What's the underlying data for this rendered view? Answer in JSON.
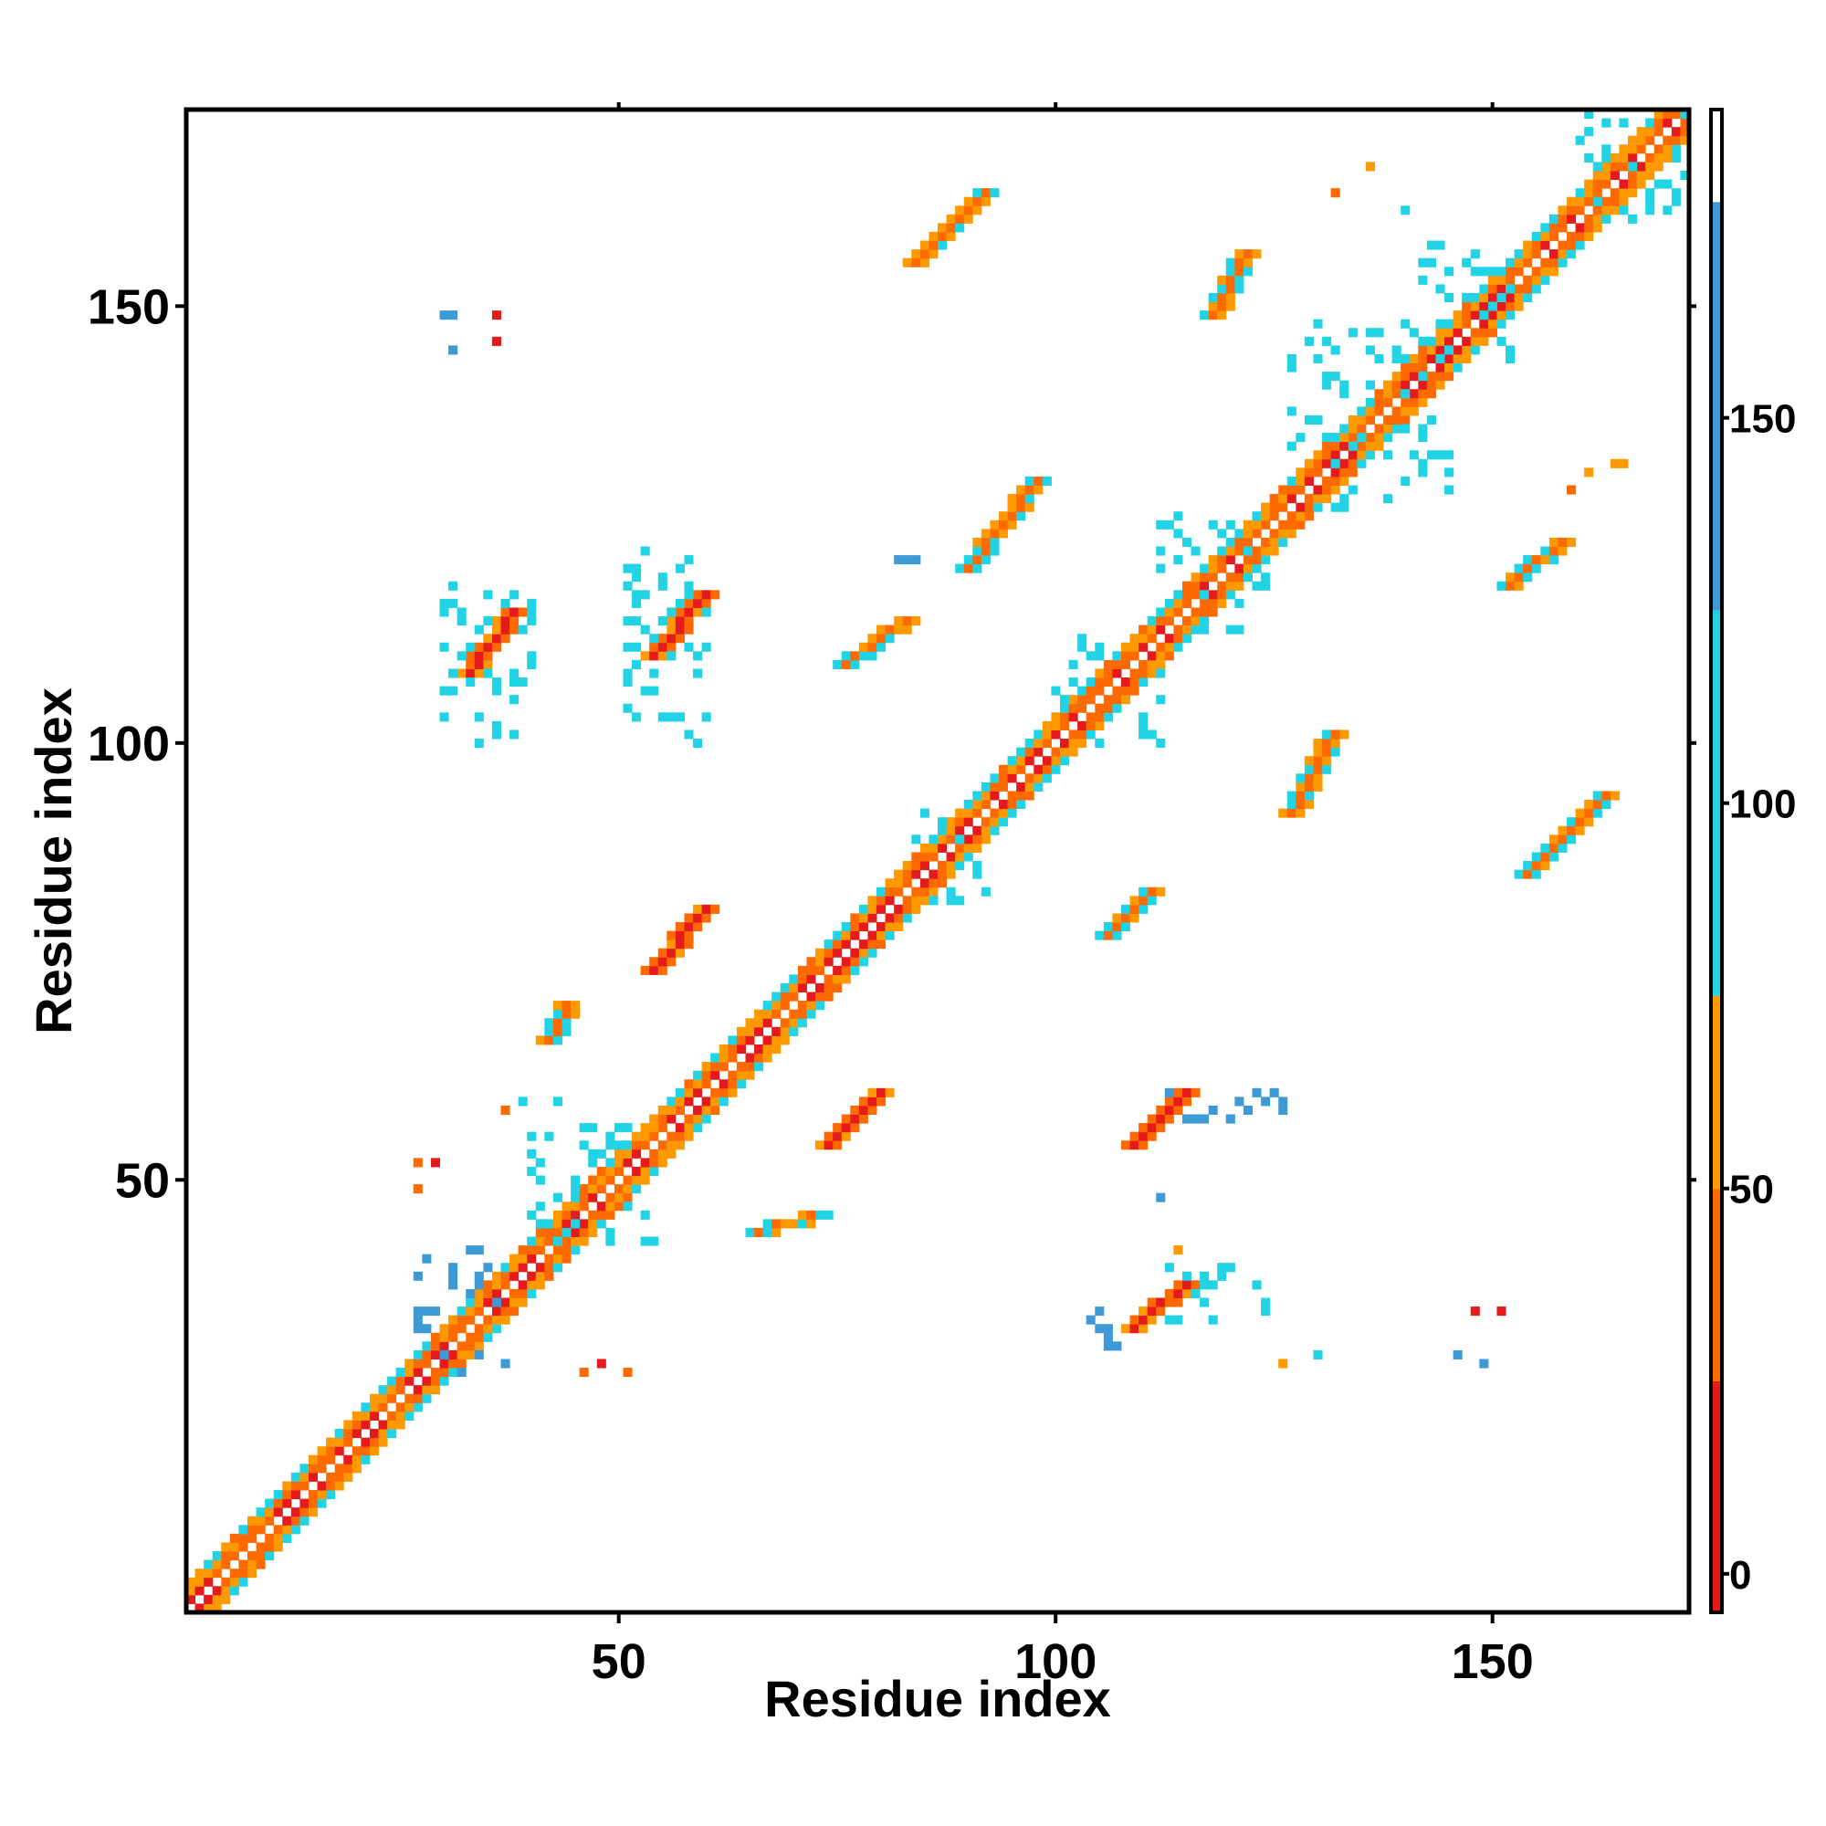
{
  "chart_data": {
    "type": "heatmap",
    "title": "",
    "xlabel": "Residue index",
    "ylabel": "Residue index",
    "xlim": [
      1,
      172
    ],
    "ylim": [
      1,
      172
    ],
    "x_ticks": [
      50,
      100,
      150
    ],
    "y_ticks": [
      50,
      100,
      150
    ],
    "grid": false,
    "legend": "colorbar-right",
    "colorbar": {
      "range": [
        -5,
        190
      ],
      "ticks": [
        0,
        50,
        100,
        150
      ],
      "bands": [
        {
          "from": -5,
          "to": 25,
          "color": "#e41a1c"
        },
        {
          "from": 25,
          "to": 50,
          "color": "#ff6a00"
        },
        {
          "from": 50,
          "to": 75,
          "color": "#ff9900"
        },
        {
          "from": 75,
          "to": 125,
          "color": "#22d3e6"
        },
        {
          "from": 125,
          "to": 178,
          "color": "#3e9ad6"
        },
        {
          "from": 178,
          "to": 190,
          "color": "#ffffff"
        }
      ]
    },
    "diagonal_band": {
      "from": 1,
      "to": 172,
      "half_width": 3
    },
    "segments": [
      {
        "x": [
          84,
          92
        ],
        "y": [
          155,
          163
        ],
        "v": 40
      },
      {
        "x": [
          33,
          38
        ],
        "y": [
          108,
          115
        ],
        "v": 10
      },
      {
        "x": [
          54,
          60
        ],
        "y": [
          110,
          117
        ],
        "v": 10
      },
      {
        "x": [
          54,
          60
        ],
        "y": [
          74,
          81
        ],
        "v": 10
      },
      {
        "x": [
          74,
          80
        ],
        "y": [
          54,
          60
        ],
        "v": 10
      },
      {
        "x": [
          109,
          115
        ],
        "y": [
          54,
          60
        ],
        "v": 10
      },
      {
        "x": [
          109,
          115
        ],
        "y": [
          33,
          38
        ],
        "v": 10
      },
      {
        "x": [
          118,
          122
        ],
        "y": [
          149,
          156
        ],
        "v": 40
      },
      {
        "x": [
          152,
          158
        ],
        "y": [
          118,
          123
        ],
        "v": 40
      },
      {
        "x": [
          154,
          163
        ],
        "y": [
          85,
          94
        ],
        "v": 40
      },
      {
        "x": [
          127,
          132
        ],
        "y": [
          92,
          101
        ],
        "v": 40
      },
      {
        "x": [
          90,
          98
        ],
        "y": [
          120,
          130
        ],
        "v": 40
      },
      {
        "x": [
          66,
          73
        ],
        "y": [
          44,
          46
        ],
        "v": 40
      },
      {
        "x": [
          42,
          44
        ],
        "y": [
          66,
          70
        ],
        "v": 40
      },
      {
        "x": [
          106,
          111
        ],
        "y": [
          78,
          83
        ],
        "v": 40
      },
      {
        "x": [
          76,
          83
        ],
        "y": [
          109,
          114
        ],
        "v": 40
      }
    ],
    "clusters": [
      {
        "x": [
          27,
          37
        ],
        "y": [
          28,
          42
        ],
        "v": 140
      },
      {
        "x": [
          40,
          55
        ],
        "y": [
          43,
          56
        ],
        "v": 100
      },
      {
        "x": [
          84,
          92
        ],
        "y": [
          82,
          92
        ],
        "v": 100
      },
      {
        "x": [
          100,
          112
        ],
        "y": [
          100,
          112
        ],
        "v": 100
      },
      {
        "x": [
          112,
          125
        ],
        "y": [
          113,
          126
        ],
        "v": 100
      },
      {
        "x": [
          127,
          145
        ],
        "y": [
          127,
          148
        ],
        "v": 100
      },
      {
        "x": [
          141,
          153
        ],
        "y": [
          144,
          155
        ],
        "v": 100
      },
      {
        "x": [
          30,
          40
        ],
        "y": [
          100,
          118
        ],
        "v": 100
      },
      {
        "x": [
          51,
          60
        ],
        "y": [
          100,
          122
        ],
        "v": 100
      },
      {
        "x": [
          113,
          125
        ],
        "y": [
          34,
          40
        ],
        "v": 100
      },
      {
        "x": [
          102,
          107
        ],
        "y": [
          31,
          35
        ],
        "v": 140
      },
      {
        "x": [
          112,
          126
        ],
        "y": [
          57,
          60
        ],
        "v": 140
      },
      {
        "x": [
          160,
          172
        ],
        "y": [
          160,
          172
        ],
        "v": 100
      }
    ],
    "singles": [
      {
        "x": 30,
        "y": 149,
        "v": 140
      },
      {
        "x": 31,
        "y": 149,
        "v": 140
      },
      {
        "x": 36,
        "y": 149,
        "v": 10
      },
      {
        "x": 36,
        "y": 146,
        "v": 10
      },
      {
        "x": 31,
        "y": 145,
        "v": 140
      },
      {
        "x": 136,
        "y": 166,
        "v": 60
      },
      {
        "x": 132,
        "y": 163,
        "v": 40
      },
      {
        "x": 140,
        "y": 161,
        "v": 100
      },
      {
        "x": 143,
        "y": 157,
        "v": 100
      },
      {
        "x": 144,
        "y": 157,
        "v": 100
      },
      {
        "x": 148,
        "y": 156,
        "v": 100
      },
      {
        "x": 164,
        "y": 132,
        "v": 60
      },
      {
        "x": 165,
        "y": 132,
        "v": 60
      },
      {
        "x": 161,
        "y": 131,
        "v": 60
      },
      {
        "x": 159,
        "y": 129,
        "v": 40
      },
      {
        "x": 84,
        "y": 121,
        "v": 140
      },
      {
        "x": 83,
        "y": 121,
        "v": 140
      },
      {
        "x": 82,
        "y": 121,
        "v": 140
      },
      {
        "x": 148,
        "y": 35,
        "v": 10
      },
      {
        "x": 151,
        "y": 35,
        "v": 10
      },
      {
        "x": 146,
        "y": 30,
        "v": 140
      },
      {
        "x": 149,
        "y": 29,
        "v": 140
      },
      {
        "x": 130,
        "y": 30,
        "v": 100
      },
      {
        "x": 126,
        "y": 29,
        "v": 60
      },
      {
        "x": 112,
        "y": 48,
        "v": 140
      },
      {
        "x": 121,
        "y": 59,
        "v": 140
      },
      {
        "x": 122,
        "y": 58,
        "v": 140
      },
      {
        "x": 124,
        "y": 59,
        "v": 140
      },
      {
        "x": 48,
        "y": 29,
        "v": 10
      },
      {
        "x": 51,
        "y": 28,
        "v": 40
      },
      {
        "x": 46,
        "y": 28,
        "v": 40
      },
      {
        "x": 27,
        "y": 52,
        "v": 40
      },
      {
        "x": 29,
        "y": 52,
        "v": 10
      },
      {
        "x": 27,
        "y": 49,
        "v": 40
      },
      {
        "x": 37,
        "y": 58,
        "v": 40
      },
      {
        "x": 39,
        "y": 59,
        "v": 100
      },
      {
        "x": 43,
        "y": 59,
        "v": 100
      },
      {
        "x": 114,
        "y": 42,
        "v": 60
      },
      {
        "x": 150,
        "y": 150,
        "v": 10
      }
    ]
  }
}
